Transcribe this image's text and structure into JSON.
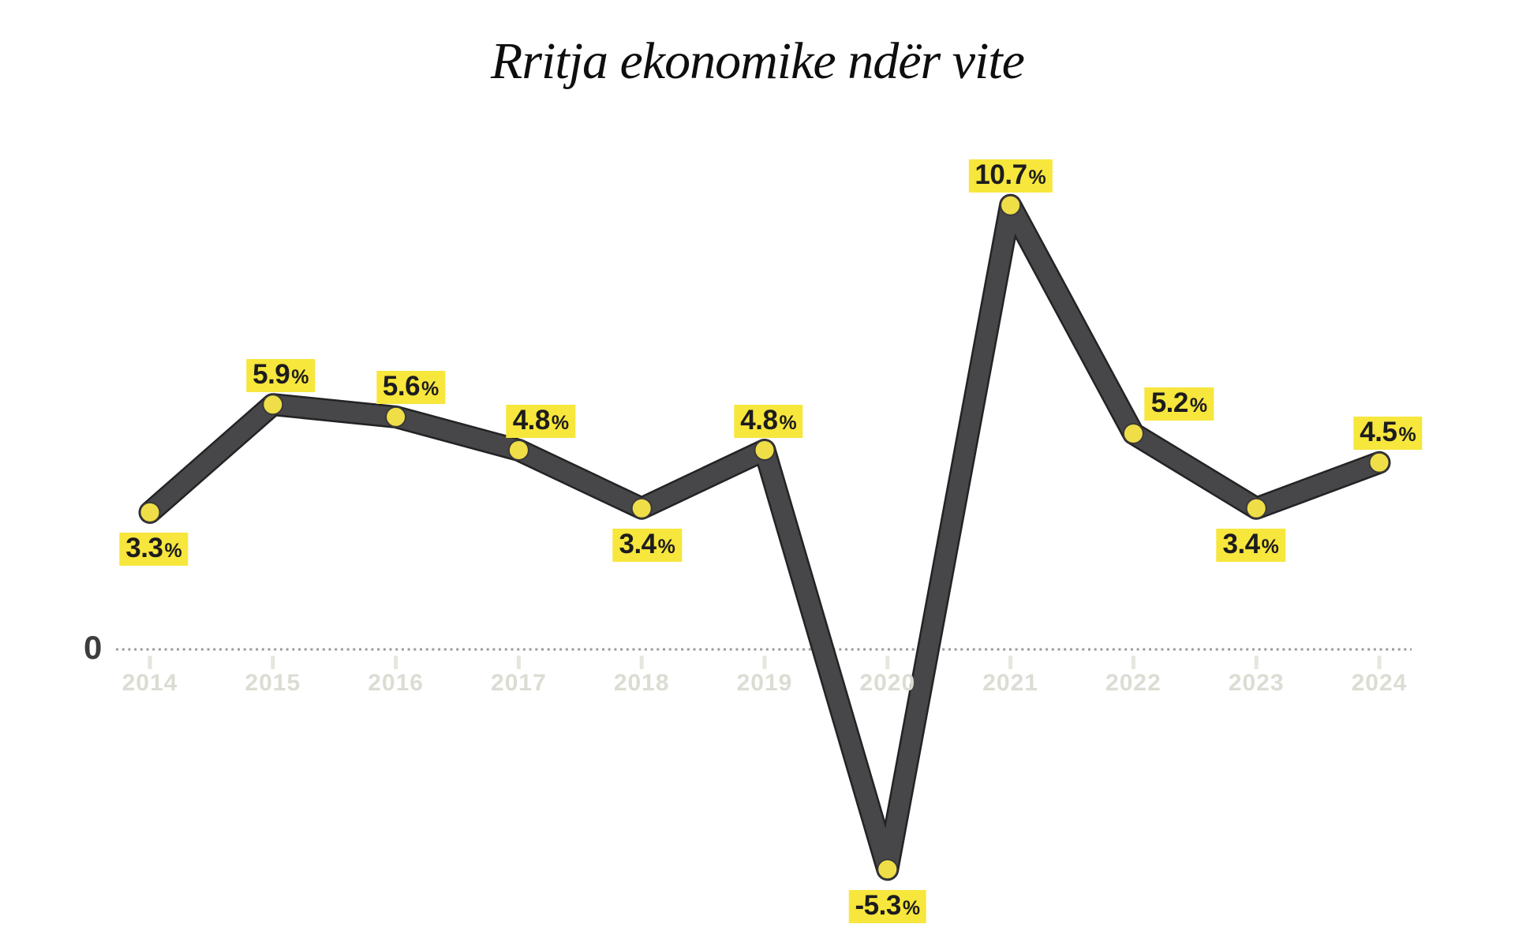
{
  "chart_data": {
    "type": "line",
    "title": "Rritja ekonomike ndër vite",
    "zero_label": "0",
    "categories": [
      "2014",
      "2015",
      "2016",
      "2017",
      "2018",
      "2019",
      "2020",
      "2021",
      "2022",
      "2023",
      "2024"
    ],
    "values": [
      3.3,
      5.9,
      5.6,
      4.8,
      3.4,
      4.8,
      -5.3,
      10.7,
      5.2,
      3.4,
      4.5
    ],
    "labels": [
      "3.3%",
      "5.9%",
      "5.6%",
      "4.8%",
      "3.4%",
      "4.8%",
      "-5.3%",
      "10.7%",
      "5.2%",
      "3.4%",
      "4.5%"
    ],
    "label_side": [
      "below",
      "above",
      "above",
      "above",
      "below",
      "above",
      "below",
      "above",
      "above",
      "below",
      "above"
    ],
    "label_dx": [
      5,
      10,
      19,
      28,
      7,
      5,
      0,
      0,
      58,
      -7,
      11
    ],
    "xlabel": "",
    "ylabel": "",
    "ylim": [
      -7.5,
      13.5
    ],
    "x_axis_position": "at-zero",
    "grid": false,
    "legend": "none",
    "zero_line_style": "dotted",
    "series_name": "Rritja ekonomike (%)",
    "colors": {
      "line": "#47474a",
      "line_edge": "#232325",
      "point_fill": "#f0de48",
      "point_edge": "#39393b",
      "label_bg": "#f7e63c",
      "label_text": "#1c1c1e",
      "axis_text": "#dcdcd4",
      "tick": "#e6e6df",
      "zero_line": "#9b9b9b",
      "zero_text": "#3d3d40",
      "title": "#0e0e0e",
      "background": "#ffffff"
    }
  }
}
